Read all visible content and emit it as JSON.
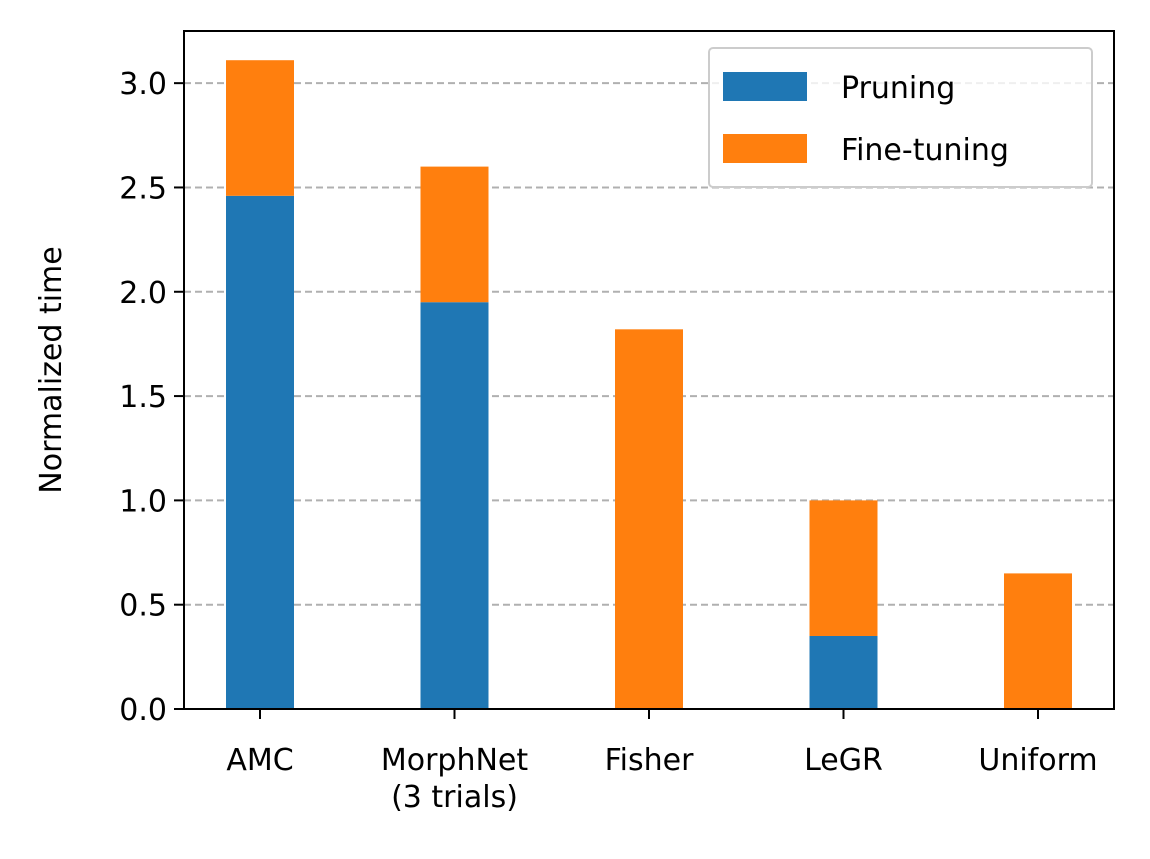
{
  "chart_data": {
    "type": "bar",
    "stacked": true,
    "title": "",
    "xlabel": "",
    "ylabel": "Normalized time",
    "ylim": [
      0,
      3.25
    ],
    "yticks": [
      "0.0",
      "0.5",
      "1.0",
      "1.5",
      "2.0",
      "2.5",
      "3.0"
    ],
    "ytick_values": [
      0,
      0.5,
      1.0,
      1.5,
      2.0,
      2.5,
      3.0
    ],
    "grid": "y-dashed",
    "legend_position": "top-right",
    "categories": [
      [
        "AMC"
      ],
      [
        "MorphNet",
        "(3 trials)"
      ],
      [
        "Fisher"
      ],
      [
        "LeGR"
      ],
      [
        "Uniform"
      ]
    ],
    "series": [
      {
        "name": "Pruning",
        "color": "#1f77b4",
        "values": [
          2.46,
          1.95,
          0.0,
          0.35,
          0.0
        ]
      },
      {
        "name": "Fine-tuning",
        "color": "#ff7f0e",
        "values": [
          0.65,
          0.65,
          1.82,
          0.65,
          0.65
        ]
      }
    ]
  }
}
